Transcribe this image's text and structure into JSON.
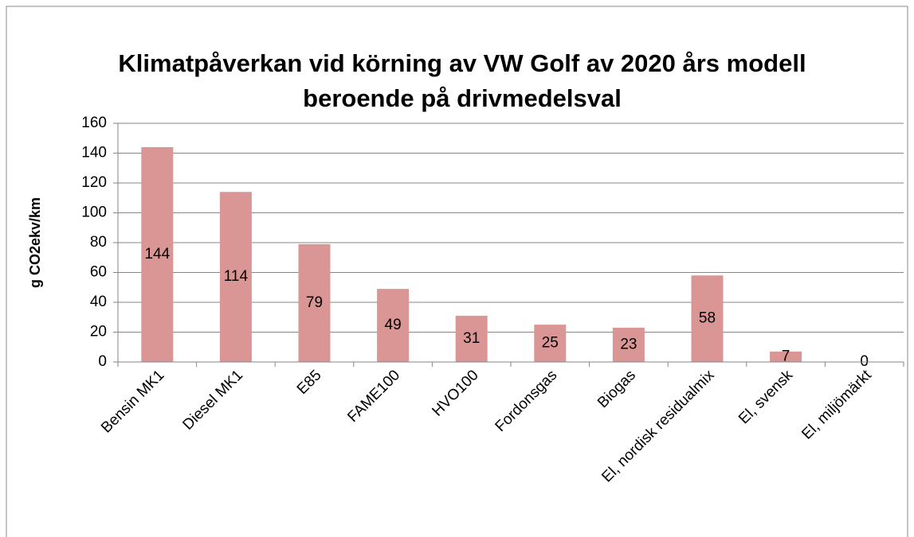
{
  "chart_data": {
    "type": "bar",
    "title": [
      "Klimatpåverkan vid körning av VW Golf av 2020 års modell",
      "beroende på drivmedelsval"
    ],
    "y_label": "g CO2ekv/km",
    "categories": [
      "Bensin MK1",
      "Diesel MK1",
      "E85",
      "FAME100",
      "HVO100",
      "Fordonsgas",
      "Biogas",
      "El, nordisk residualmix",
      "El, svensk",
      "El, miljömärkt"
    ],
    "values": [
      144,
      114,
      79,
      49,
      31,
      25,
      23,
      58,
      7,
      0
    ],
    "color": "#d99694",
    "ylim": [
      0,
      160
    ],
    "yticks": [
      0,
      20,
      40,
      60,
      80,
      100,
      120,
      140,
      160
    ],
    "grid": true
  }
}
